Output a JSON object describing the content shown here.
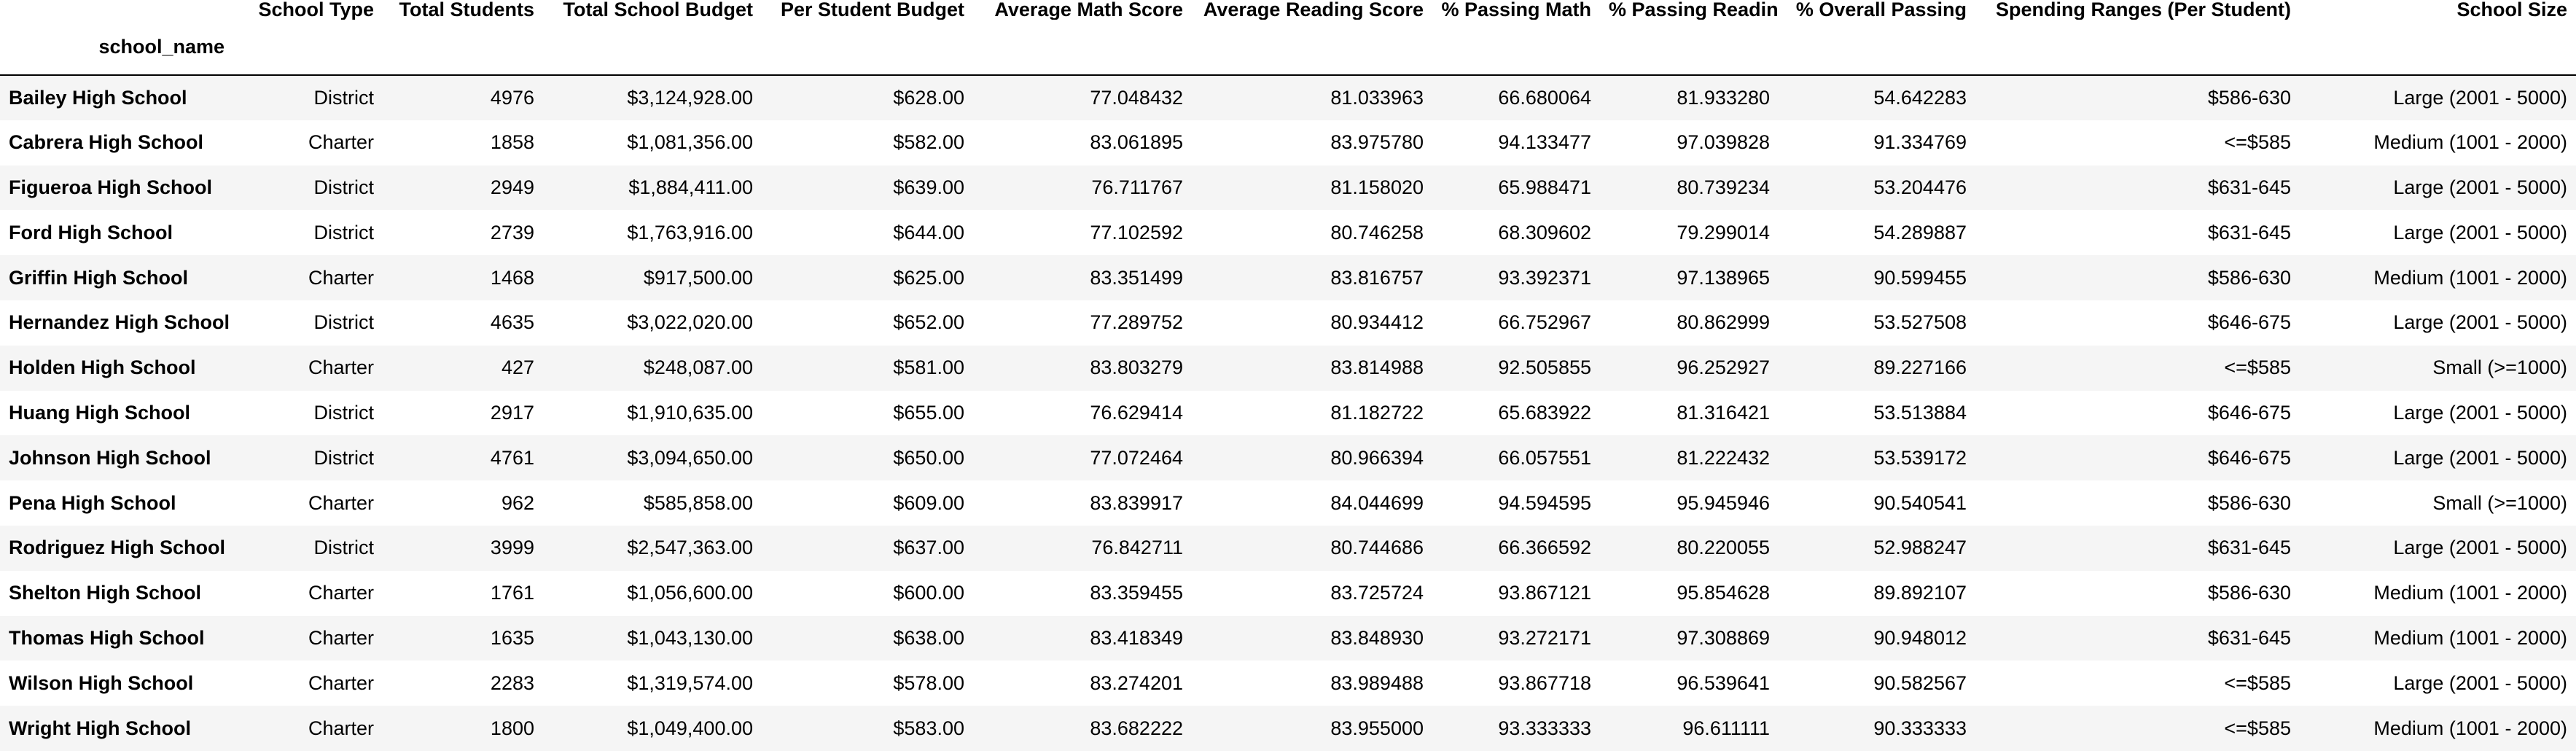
{
  "table": {
    "index_name": "school_name",
    "columns": [
      "School Type",
      "Total Students",
      "Total School Budget",
      "Per Student Budget",
      "Average Math Score",
      "Average Reading Score",
      "% Passing Math",
      "% Passing Reading",
      "% Overall Passing",
      "Spending Ranges (Per Student)",
      "School Size"
    ],
    "rows": [
      {
        "school_name": "Bailey High School",
        "cells": [
          "District",
          "4976",
          "$3,124,928.00",
          "$628.00",
          "77.048432",
          "81.033963",
          "66.680064",
          "81.933280",
          "54.642283",
          "$586-630",
          "Large (2001 - 5000)"
        ]
      },
      {
        "school_name": "Cabrera High School",
        "cells": [
          "Charter",
          "1858",
          "$1,081,356.00",
          "$582.00",
          "83.061895",
          "83.975780",
          "94.133477",
          "97.039828",
          "91.334769",
          "<=$585",
          "Medium (1001 - 2000)"
        ]
      },
      {
        "school_name": "Figueroa High School",
        "cells": [
          "District",
          "2949",
          "$1,884,411.00",
          "$639.00",
          "76.711767",
          "81.158020",
          "65.988471",
          "80.739234",
          "53.204476",
          "$631-645",
          "Large (2001 - 5000)"
        ]
      },
      {
        "school_name": "Ford High School",
        "cells": [
          "District",
          "2739",
          "$1,763,916.00",
          "$644.00",
          "77.102592",
          "80.746258",
          "68.309602",
          "79.299014",
          "54.289887",
          "$631-645",
          "Large (2001 - 5000)"
        ]
      },
      {
        "school_name": "Griffin High School",
        "cells": [
          "Charter",
          "1468",
          "$917,500.00",
          "$625.00",
          "83.351499",
          "83.816757",
          "93.392371",
          "97.138965",
          "90.599455",
          "$586-630",
          "Medium (1001 - 2000)"
        ]
      },
      {
        "school_name": "Hernandez High School",
        "cells": [
          "District",
          "4635",
          "$3,022,020.00",
          "$652.00",
          "77.289752",
          "80.934412",
          "66.752967",
          "80.862999",
          "53.527508",
          "$646-675",
          "Large (2001 - 5000)"
        ]
      },
      {
        "school_name": "Holden High School",
        "cells": [
          "Charter",
          "427",
          "$248,087.00",
          "$581.00",
          "83.803279",
          "83.814988",
          "92.505855",
          "96.252927",
          "89.227166",
          "<=$585",
          "Small (>=1000)"
        ]
      },
      {
        "school_name": "Huang High School",
        "cells": [
          "District",
          "2917",
          "$1,910,635.00",
          "$655.00",
          "76.629414",
          "81.182722",
          "65.683922",
          "81.316421",
          "53.513884",
          "$646-675",
          "Large (2001 - 5000)"
        ]
      },
      {
        "school_name": "Johnson High School",
        "cells": [
          "District",
          "4761",
          "$3,094,650.00",
          "$650.00",
          "77.072464",
          "80.966394",
          "66.057551",
          "81.222432",
          "53.539172",
          "$646-675",
          "Large (2001 - 5000)"
        ]
      },
      {
        "school_name": "Pena High School",
        "cells": [
          "Charter",
          "962",
          "$585,858.00",
          "$609.00",
          "83.839917",
          "84.044699",
          "94.594595",
          "95.945946",
          "90.540541",
          "$586-630",
          "Small (>=1000)"
        ]
      },
      {
        "school_name": "Rodriguez High School",
        "cells": [
          "District",
          "3999",
          "$2,547,363.00",
          "$637.00",
          "76.842711",
          "80.744686",
          "66.366592",
          "80.220055",
          "52.988247",
          "$631-645",
          "Large (2001 - 5000)"
        ]
      },
      {
        "school_name": "Shelton High School",
        "cells": [
          "Charter",
          "1761",
          "$1,056,600.00",
          "$600.00",
          "83.359455",
          "83.725724",
          "93.867121",
          "95.854628",
          "89.892107",
          "$586-630",
          "Medium (1001 - 2000)"
        ]
      },
      {
        "school_name": "Thomas High School",
        "cells": [
          "Charter",
          "1635",
          "$1,043,130.00",
          "$638.00",
          "83.418349",
          "83.848930",
          "93.272171",
          "97.308869",
          "90.948012",
          "$631-645",
          "Medium (1001 - 2000)"
        ]
      },
      {
        "school_name": "Wilson High School",
        "cells": [
          "Charter",
          "2283",
          "$1,319,574.00",
          "$578.00",
          "83.274201",
          "83.989488",
          "93.867718",
          "96.539641",
          "90.582567",
          "<=$585",
          "Large (2001 - 5000)"
        ]
      },
      {
        "school_name": "Wright High School",
        "cells": [
          "Charter",
          "1800",
          "$1,049,400.00",
          "$583.00",
          "83.682222",
          "83.955000",
          "93.333333",
          "96.611111",
          "90.333333",
          "<=$585",
          "Medium (1001 - 2000)"
        ]
      }
    ]
  }
}
